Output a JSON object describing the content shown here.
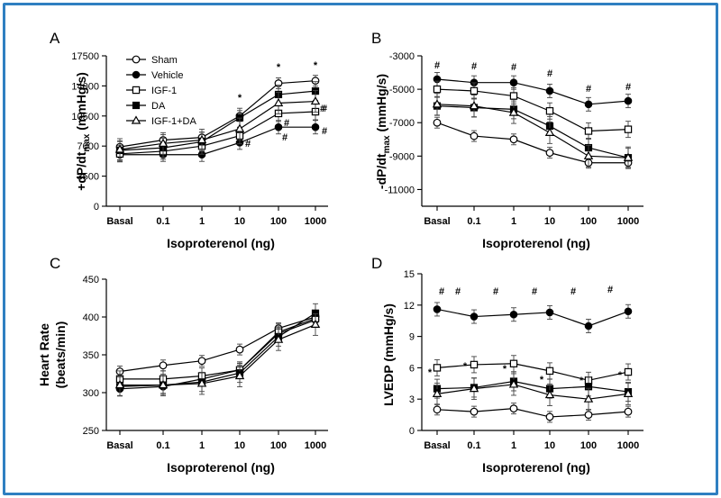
{
  "chart_data": [
    {
      "panel": "A",
      "type": "line",
      "ylabel": "+dP/dt",
      "ylabel_sub": "max",
      "ylabel_unit": " (mmHg/s)",
      "xlabel": "Isoproterenol (ng)",
      "categories": [
        "Basal",
        "0.1",
        "1",
        "10",
        "100",
        "1000"
      ],
      "ylim": [
        0,
        17500
      ],
      "yticks": [
        "0",
        "3500",
        "7000",
        "10500",
        "14000",
        "17500"
      ],
      "legend": [
        "Sham",
        "Vehicle",
        "IGF-1",
        "DA",
        "IGF-1+DA"
      ],
      "series": [
        {
          "name": "Sham",
          "marker": "open-circle",
          "values": [
            6900,
            7700,
            8000,
            10500,
            14300,
            14600
          ]
        },
        {
          "name": "Vehicle",
          "marker": "filled-circle",
          "values": [
            6000,
            6000,
            6000,
            7400,
            9200,
            9200
          ]
        },
        {
          "name": "IGF-1",
          "marker": "open-square",
          "values": [
            6100,
            6400,
            7000,
            8200,
            10800,
            11000
          ]
        },
        {
          "name": "DA",
          "marker": "filled-square",
          "values": [
            6500,
            6800,
            7500,
            10300,
            13000,
            13400
          ]
        },
        {
          "name": "IGF-1+DA",
          "marker": "open-triangle",
          "values": [
            6600,
            7300,
            7700,
            9000,
            12000,
            12200
          ]
        }
      ],
      "annotations": [
        "*",
        "*",
        "*",
        "#",
        "#",
        "#",
        "#",
        "#",
        "#"
      ]
    },
    {
      "panel": "B",
      "type": "line",
      "ylabel": "-dP/dt",
      "ylabel_sub": "max",
      "ylabel_unit": " (mmHg/s)",
      "xlabel": "Isoproterenol (ng)",
      "categories": [
        "Basal",
        "0.1",
        "1",
        "10",
        "100",
        "1000"
      ],
      "ylim": [
        -12000,
        -3000
      ],
      "yticks": [
        "-3000",
        "-5000",
        "-7000",
        "-9000",
        "-11000"
      ],
      "series": [
        {
          "name": "Sham",
          "marker": "open-circle",
          "values": [
            -7000,
            -7800,
            -8000,
            -8800,
            -9400,
            -9400
          ]
        },
        {
          "name": "Vehicle",
          "marker": "filled-circle",
          "values": [
            -4400,
            -4600,
            -4600,
            -5100,
            -5900,
            -5700
          ]
        },
        {
          "name": "IGF-1",
          "marker": "open-square",
          "values": [
            -5000,
            -5100,
            -5400,
            -6300,
            -7500,
            -7400
          ]
        },
        {
          "name": "DA",
          "marker": "filled-square",
          "values": [
            -6000,
            -6100,
            -6200,
            -7200,
            -8500,
            -9100
          ]
        },
        {
          "name": "IGF-1+DA",
          "marker": "open-triangle",
          "values": [
            -5900,
            -6000,
            -6400,
            -7600,
            -9000,
            -9100
          ]
        }
      ],
      "annotations": [
        "#",
        "#",
        "#",
        "#",
        "#",
        "#"
      ]
    },
    {
      "panel": "C",
      "type": "line",
      "ylabel": "Heart Rate",
      "ylabel2": "(beats/min)",
      "xlabel": "Isoproterenol (ng)",
      "categories": [
        "Basal",
        "0.1",
        "1",
        "10",
        "100",
        "1000"
      ],
      "ylim": [
        250,
        450
      ],
      "yticks": [
        "250",
        "300",
        "350",
        "400",
        "450"
      ],
      "series": [
        {
          "name": "Sham",
          "marker": "open-circle",
          "values": [
            328,
            336,
            342,
            357,
            385,
            400
          ]
        },
        {
          "name": "Vehicle",
          "marker": "filled-circle",
          "values": [
            305,
            308,
            318,
            330,
            378,
            396
          ]
        },
        {
          "name": "IGF-1",
          "marker": "open-square",
          "values": [
            318,
            318,
            322,
            330,
            380,
            398
          ]
        },
        {
          "name": "DA",
          "marker": "filled-square",
          "values": [
            308,
            310,
            314,
            326,
            374,
            405
          ]
        },
        {
          "name": "IGF-1+DA",
          "marker": "open-triangle",
          "values": [
            310,
            310,
            312,
            322,
            370,
            390
          ]
        }
      ]
    },
    {
      "panel": "D",
      "type": "line",
      "ylabel": "LVEDP (mmHg/s)",
      "xlabel": "Isoproterenol (ng)",
      "categories": [
        "Basal",
        "0.1",
        "1",
        "10",
        "100",
        "1000"
      ],
      "ylim": [
        0,
        15
      ],
      "yticks": [
        "0",
        "3",
        "6",
        "9",
        "12",
        "15"
      ],
      "series": [
        {
          "name": "Sham",
          "marker": "open-circle",
          "values": [
            2.0,
            1.8,
            2.1,
            1.3,
            1.5,
            1.8
          ]
        },
        {
          "name": "Vehicle",
          "marker": "filled-circle",
          "values": [
            11.6,
            10.9,
            11.1,
            11.3,
            10.0,
            11.4
          ]
        },
        {
          "name": "IGF-1",
          "marker": "open-square",
          "values": [
            6.0,
            6.3,
            6.4,
            5.7,
            4.8,
            5.6
          ]
        },
        {
          "name": "DA",
          "marker": "filled-square",
          "values": [
            4.0,
            4.1,
            4.7,
            4.0,
            4.2,
            3.7
          ]
        },
        {
          "name": "IGF-1+DA",
          "marker": "open-triangle",
          "values": [
            3.5,
            4.0,
            4.4,
            3.4,
            3.0,
            3.5
          ]
        }
      ],
      "annotations": [
        "#",
        "#",
        "#",
        "#",
        "#",
        "#",
        "*",
        "*",
        "*",
        "*",
        "*",
        "*"
      ]
    }
  ]
}
